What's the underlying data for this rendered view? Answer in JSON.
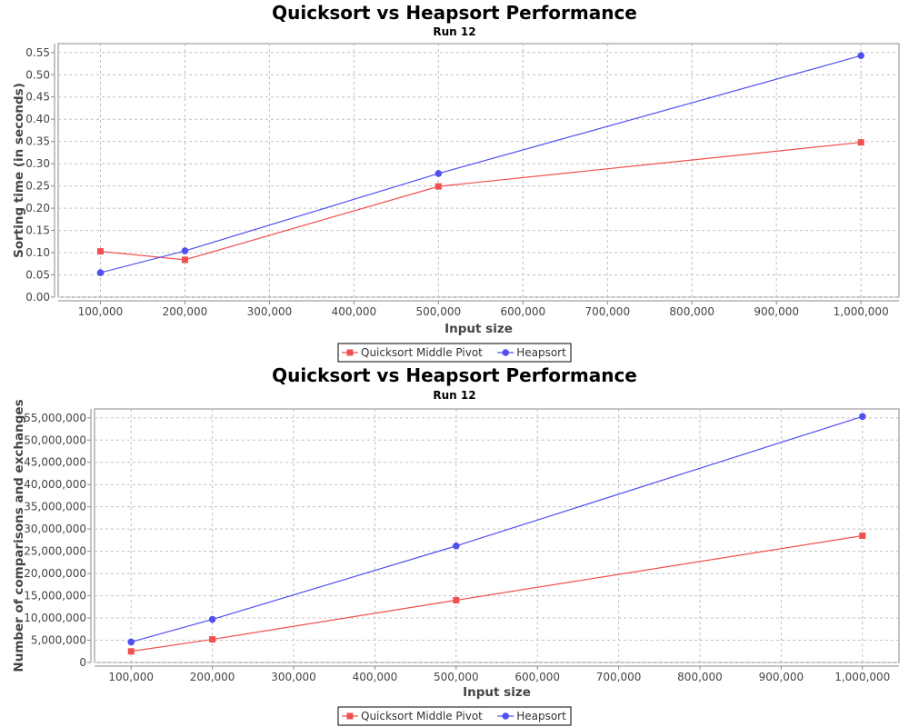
{
  "chart_data": [
    {
      "type": "line",
      "title": "Quicksort vs Heapsort Performance",
      "subtitle": "Run 12",
      "xlabel": "Input size",
      "ylabel": "Sorting time (in seconds)",
      "xlim": [
        50000,
        1045000
      ],
      "ylim": [
        0,
        0.57
      ],
      "xticks": [
        100000,
        200000,
        300000,
        400000,
        500000,
        600000,
        700000,
        800000,
        900000,
        1000000
      ],
      "xtick_labels": [
        "100,000",
        "200,000",
        "300,000",
        "400,000",
        "500,000",
        "600,000",
        "700,000",
        "800,000",
        "900,000",
        "1,000,000"
      ],
      "yticks": [
        0,
        0.05,
        0.1,
        0.15,
        0.2,
        0.25,
        0.3,
        0.35,
        0.4,
        0.45,
        0.5,
        0.55
      ],
      "ytick_labels": [
        "0.00",
        "0.05",
        "0.10",
        "0.15",
        "0.20",
        "0.25",
        "0.30",
        "0.35",
        "0.40",
        "0.45",
        "0.50",
        "0.55"
      ],
      "grid": true,
      "legend_position": "bottom-center",
      "x": [
        100000,
        200000,
        500000,
        1000000
      ],
      "series": [
        {
          "name": "Quicksort Middle Pivot",
          "color": "#f05050",
          "marker": "square",
          "values": [
            0.103,
            0.084,
            0.249,
            0.348
          ]
        },
        {
          "name": "Heapsort",
          "color": "#5050f0",
          "marker": "circle",
          "values": [
            0.055,
            0.104,
            0.278,
            0.543
          ]
        }
      ]
    },
    {
      "type": "line",
      "title": "Quicksort vs Heapsort Performance",
      "subtitle": "Run 12",
      "xlabel": "Input size",
      "ylabel": "Number of comparisons and exchanges",
      "xlim": [
        55000,
        1045000
      ],
      "ylim": [
        0,
        57000000
      ],
      "xticks": [
        100000,
        200000,
        300000,
        400000,
        500000,
        600000,
        700000,
        800000,
        900000,
        1000000
      ],
      "xtick_labels": [
        "100,000",
        "200,000",
        "300,000",
        "400,000",
        "500,000",
        "600,000",
        "700,000",
        "800,000",
        "900,000",
        "1,000,000"
      ],
      "yticks": [
        0,
        5000000,
        10000000,
        15000000,
        20000000,
        25000000,
        30000000,
        35000000,
        40000000,
        45000000,
        50000000,
        55000000
      ],
      "ytick_labels": [
        "0",
        "5,000,000",
        "10,000,000",
        "15,000,000",
        "20,000,000",
        "25,000,000",
        "30,000,000",
        "35,000,000",
        "40,000,000",
        "45,000,000",
        "50,000,000",
        "55,000,000"
      ],
      "grid": true,
      "legend_position": "bottom-center",
      "x": [
        100000,
        200000,
        500000,
        1000000
      ],
      "series": [
        {
          "name": "Quicksort Middle Pivot",
          "color": "#f05050",
          "marker": "square",
          "values": [
            2500000,
            5200000,
            14000000,
            28500000
          ]
        },
        {
          "name": "Heapsort",
          "color": "#5050f0",
          "marker": "circle",
          "values": [
            4600000,
            9700000,
            26200000,
            55300000
          ]
        }
      ]
    }
  ]
}
